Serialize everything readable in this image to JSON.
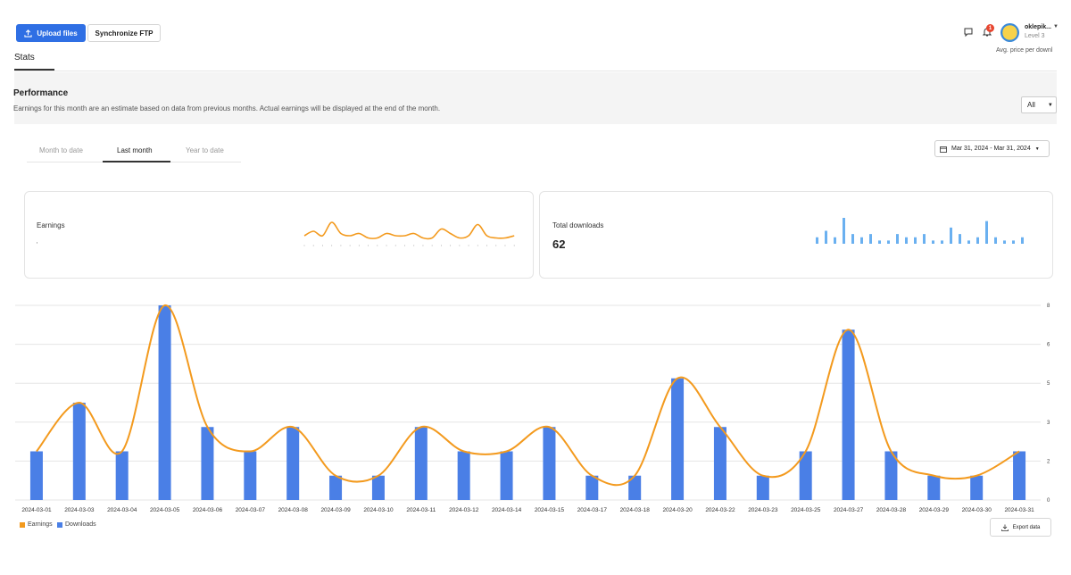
{
  "toolbar": {
    "upload_label": "Upload files",
    "ftp_label": "Synchronize FTP"
  },
  "header": {
    "notification_count": "1",
    "user_name": "oklepik...",
    "user_level": "Level 3",
    "avg_price_label": "Avg. price per downl"
  },
  "tabs": {
    "stats_label": "Stats"
  },
  "performance": {
    "title": "Performance",
    "note": "Earnings for this month are an estimate based on data from previous months. Actual earnings will be displayed at the end of the month.",
    "filter_value": "All"
  },
  "period_tabs": [
    {
      "label": "Month to date",
      "active": false
    },
    {
      "label": "Last month",
      "active": true
    },
    {
      "label": "Year to date",
      "active": false
    }
  ],
  "date_range": "Mar 31, 2024 - Mar 31, 2024",
  "cards": {
    "earnings": {
      "label": "Earnings",
      "value": "‚"
    },
    "downloads": {
      "label": "Total downloads",
      "value": "62"
    }
  },
  "legend": {
    "earnings": "Earnings",
    "downloads": "Downloads"
  },
  "export_label": "Export data",
  "colors": {
    "accent": "#2f6fe4",
    "earnings": "#f39a1e",
    "downloads": "#4a7fe6",
    "spark_bars": "#6ab0f0"
  },
  "chart_data": {
    "type": "bar",
    "categories": [
      "2024-03-01",
      "2024-03-03",
      "2024-03-04",
      "2024-03-05",
      "2024-03-06",
      "2024-03-07",
      "2024-03-08",
      "2024-03-09",
      "2024-03-10",
      "2024-03-11",
      "2024-03-12",
      "2024-03-14",
      "2024-03-15",
      "2024-03-17",
      "2024-03-18",
      "2024-03-20",
      "2024-03-22",
      "2024-03-23",
      "2024-03-25",
      "2024-03-27",
      "2024-03-28",
      "2024-03-29",
      "2024-03-30",
      "2024-03-31"
    ],
    "series": [
      {
        "name": "Downloads",
        "values": [
          2,
          4,
          2,
          8,
          3,
          2,
          3,
          1,
          1,
          3,
          2,
          2,
          3,
          1,
          1,
          5,
          3,
          1,
          2,
          7,
          2,
          1,
          1,
          2
        ]
      },
      {
        "name": "Earnings",
        "values": [
          2,
          4,
          2,
          8,
          3,
          2,
          3,
          1,
          1,
          3,
          2,
          2,
          3,
          1,
          1,
          5,
          3,
          1,
          2,
          7,
          2,
          1,
          1,
          2
        ]
      }
    ],
    "y_ticks": [
      "0",
      "2",
      "3",
      "5",
      "6",
      "8"
    ],
    "ylim": [
      0,
      8
    ],
    "grid": true,
    "legend_position": "bottom-left"
  }
}
